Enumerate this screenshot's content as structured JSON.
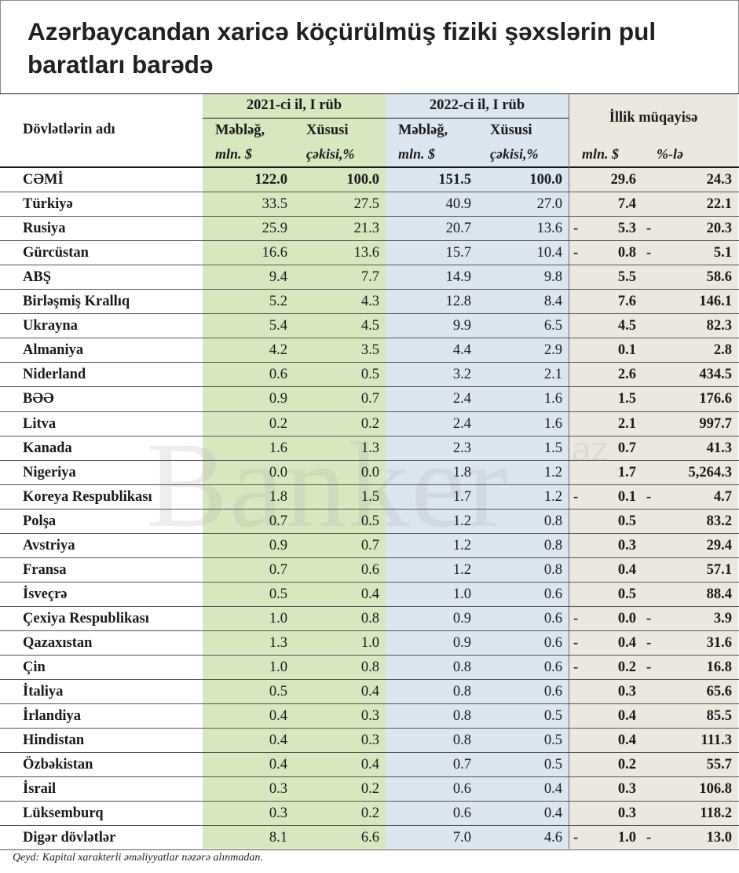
{
  "title": "Azərbaycandan xaricə köçürülmüş fiziki şəxslərin pul baratları barədə",
  "watermark": "Banker",
  "watermark_sup": "az",
  "header": {
    "country_col": "Dövlətlərin adı",
    "period1": "2021-ci il, I rüb",
    "period2": "2022-ci il, I rüb",
    "comparison": "İllik müqayisə",
    "amount": "Məbləğ,",
    "share": "Xüsusi",
    "unit_amount": "mln. $",
    "unit_share": "çəkisi,%",
    "cmp_unit_amount": "mln. $",
    "cmp_unit_pct": "%-lə"
  },
  "rows": [
    {
      "country": "CƏMİ",
      "a21": "122.0",
      "s21": "100.0",
      "a22": "151.5",
      "s22": "100.0",
      "neg": false,
      "cmp_amt": "29.6",
      "cmp_pct": "24.3"
    },
    {
      "country": "Türkiyə",
      "a21": "33.5",
      "s21": "27.5",
      "a22": "40.9",
      "s22": "27.0",
      "neg": false,
      "cmp_amt": "7.4",
      "cmp_pct": "22.1"
    },
    {
      "country": "Rusiya",
      "a21": "25.9",
      "s21": "21.3",
      "a22": "20.7",
      "s22": "13.6",
      "neg": true,
      "cmp_amt": "5.3",
      "cmp_pct": "20.3"
    },
    {
      "country": "Gürcüstan",
      "a21": "16.6",
      "s21": "13.6",
      "a22": "15.7",
      "s22": "10.4",
      "neg": true,
      "cmp_amt": "0.8",
      "cmp_pct": "5.1"
    },
    {
      "country": "ABŞ",
      "a21": "9.4",
      "s21": "7.7",
      "a22": "14.9",
      "s22": "9.8",
      "neg": false,
      "cmp_amt": "5.5",
      "cmp_pct": "58.6"
    },
    {
      "country": "Birləşmiş Krallıq",
      "a21": "5.2",
      "s21": "4.3",
      "a22": "12.8",
      "s22": "8.4",
      "neg": false,
      "cmp_amt": "7.6",
      "cmp_pct": "146.1"
    },
    {
      "country": "Ukrayna",
      "a21": "5.4",
      "s21": "4.5",
      "a22": "9.9",
      "s22": "6.5",
      "neg": false,
      "cmp_amt": "4.5",
      "cmp_pct": "82.3"
    },
    {
      "country": "Almaniya",
      "a21": "4.2",
      "s21": "3.5",
      "a22": "4.4",
      "s22": "2.9",
      "neg": false,
      "cmp_amt": "0.1",
      "cmp_pct": "2.8"
    },
    {
      "country": "Niderland",
      "a21": "0.6",
      "s21": "0.5",
      "a22": "3.2",
      "s22": "2.1",
      "neg": false,
      "cmp_amt": "2.6",
      "cmp_pct": "434.5"
    },
    {
      "country": "BƏƏ",
      "a21": "0.9",
      "s21": "0.7",
      "a22": "2.4",
      "s22": "1.6",
      "neg": false,
      "cmp_amt": "1.5",
      "cmp_pct": "176.6"
    },
    {
      "country": "Litva",
      "a21": "0.2",
      "s21": "0.2",
      "a22": "2.4",
      "s22": "1.6",
      "neg": false,
      "cmp_amt": "2.1",
      "cmp_pct": "997.7"
    },
    {
      "country": "Kanada",
      "a21": "1.6",
      "s21": "1.3",
      "a22": "2.3",
      "s22": "1.5",
      "neg": false,
      "cmp_amt": "0.7",
      "cmp_pct": "41.3"
    },
    {
      "country": "Nigeriya",
      "a21": "0.0",
      "s21": "0.0",
      "a22": "1.8",
      "s22": "1.2",
      "neg": false,
      "cmp_amt": "1.7",
      "cmp_pct": "5,264.3"
    },
    {
      "country": "Koreya Respublikası",
      "a21": "1.8",
      "s21": "1.5",
      "a22": "1.7",
      "s22": "1.2",
      "neg": true,
      "cmp_amt": "0.1",
      "cmp_pct": "4.7"
    },
    {
      "country": "Polşa",
      "a21": "0.7",
      "s21": "0.5",
      "a22": "1.2",
      "s22": "0.8",
      "neg": false,
      "cmp_amt": "0.5",
      "cmp_pct": "83.2"
    },
    {
      "country": "Avstriya",
      "a21": "0.9",
      "s21": "0.7",
      "a22": "1.2",
      "s22": "0.8",
      "neg": false,
      "cmp_amt": "0.3",
      "cmp_pct": "29.4"
    },
    {
      "country": "Fransa",
      "a21": "0.7",
      "s21": "0.6",
      "a22": "1.2",
      "s22": "0.8",
      "neg": false,
      "cmp_amt": "0.4",
      "cmp_pct": "57.1"
    },
    {
      "country": "İsveçrə",
      "a21": "0.5",
      "s21": "0.4",
      "a22": "1.0",
      "s22": "0.6",
      "neg": false,
      "cmp_amt": "0.5",
      "cmp_pct": "88.4"
    },
    {
      "country": "Çexiya Respublikası",
      "a21": "1.0",
      "s21": "0.8",
      "a22": "0.9",
      "s22": "0.6",
      "neg": true,
      "cmp_amt": "0.0",
      "cmp_pct": "3.9"
    },
    {
      "country": "Qazaxıstan",
      "a21": "1.3",
      "s21": "1.0",
      "a22": "0.9",
      "s22": "0.6",
      "neg": true,
      "cmp_amt": "0.4",
      "cmp_pct": "31.6"
    },
    {
      "country": "Çin",
      "a21": "1.0",
      "s21": "0.8",
      "a22": "0.8",
      "s22": "0.6",
      "neg": true,
      "cmp_amt": "0.2",
      "cmp_pct": "16.8"
    },
    {
      "country": "İtaliya",
      "a21": "0.5",
      "s21": "0.4",
      "a22": "0.8",
      "s22": "0.6",
      "neg": false,
      "cmp_amt": "0.3",
      "cmp_pct": "65.6"
    },
    {
      "country": "İrlandiya",
      "a21": "0.4",
      "s21": "0.3",
      "a22": "0.8",
      "s22": "0.5",
      "neg": false,
      "cmp_amt": "0.4",
      "cmp_pct": "85.5"
    },
    {
      "country": "Hindistan",
      "a21": "0.4",
      "s21": "0.3",
      "a22": "0.8",
      "s22": "0.5",
      "neg": false,
      "cmp_amt": "0.4",
      "cmp_pct": "111.3"
    },
    {
      "country": "Özbəkistan",
      "a21": "0.4",
      "s21": "0.4",
      "a22": "0.7",
      "s22": "0.5",
      "neg": false,
      "cmp_amt": "0.2",
      "cmp_pct": "55.7"
    },
    {
      "country": "İsrail",
      "a21": "0.3",
      "s21": "0.2",
      "a22": "0.6",
      "s22": "0.4",
      "neg": false,
      "cmp_amt": "0.3",
      "cmp_pct": "106.8"
    },
    {
      "country": "Lüksemburq",
      "a21": "0.3",
      "s21": "0.2",
      "a22": "0.6",
      "s22": "0.4",
      "neg": false,
      "cmp_amt": "0.3",
      "cmp_pct": "118.2"
    },
    {
      "country": "Digər dövlətlər",
      "a21": "8.1",
      "s21": "6.6",
      "a22": "7.0",
      "s22": "4.6",
      "neg": true,
      "cmp_amt": "1.0",
      "cmp_pct": "13.0"
    }
  ],
  "negative_marker": "-",
  "note": "Qeyd: Kapital xarakterli əməliyyatlar nəzərə alınmadan."
}
